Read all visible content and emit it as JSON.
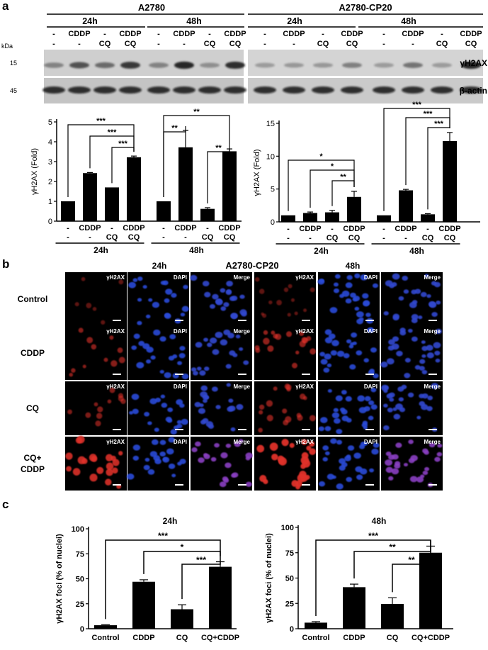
{
  "panel_labels": {
    "a": "a",
    "b": "b",
    "c": "c"
  },
  "western_blot": {
    "groups": [
      {
        "cell_line": "A2780",
        "time_points": [
          "24h",
          "48h"
        ]
      },
      {
        "cell_line": "A2780-CP20",
        "time_points": [
          "24h",
          "48h"
        ]
      }
    ],
    "lane_row1": [
      "-",
      "CDDP",
      "-",
      "CDDP"
    ],
    "lane_row2": [
      "-",
      "-",
      "CQ",
      "CQ"
    ],
    "kda_label": "kDa",
    "bands": [
      {
        "kda": "15",
        "name": "γH2AX"
      },
      {
        "kda": "45",
        "name": "β-actin"
      }
    ]
  },
  "bar_xaxis": {
    "row1": [
      "-",
      "CDDP",
      "-",
      "CDDP"
    ],
    "row2": [
      "-",
      "-",
      "CQ",
      "CQ"
    ],
    "groups": [
      "24h",
      "48h"
    ]
  },
  "panel_b": {
    "title": "A2780-CP20",
    "time_points": [
      "24h",
      "48h"
    ],
    "channels": [
      "γH2AX",
      "DAPI",
      "Merge"
    ],
    "rows": [
      "Control",
      "CDDP",
      "CQ",
      "CQ+\nCDDP"
    ]
  },
  "chart_data": [
    {
      "type": "bar",
      "panel": "a",
      "cell_line": "A2780",
      "ylabel": "γH2AX (Fold)",
      "ylim": [
        0,
        5
      ],
      "yticks": [
        0,
        1,
        2,
        3,
        4,
        5
      ],
      "groups": [
        "24h",
        "48h"
      ],
      "categories": [
        "-/-",
        "CDDP/-",
        "-/CQ",
        "CDDP/CQ"
      ],
      "series": [
        {
          "name": "24h",
          "values": [
            1.0,
            2.42,
            1.7,
            3.22
          ],
          "errors": [
            0,
            0.03,
            0,
            0.06
          ]
        },
        {
          "name": "48h",
          "values": [
            1.0,
            3.72,
            0.62,
            3.52
          ],
          "errors": [
            0,
            0.85,
            0.06,
            0.12
          ]
        }
      ],
      "significance": [
        {
          "label": "***",
          "group": 0,
          "from": 0,
          "to": 3
        },
        {
          "label": "***",
          "group": 0,
          "from": 1,
          "to": 3
        },
        {
          "label": "***",
          "group": 0,
          "from": 2,
          "to": 3
        },
        {
          "label": "**",
          "group": 1,
          "from": 0,
          "to": 1
        },
        {
          "label": "**",
          "group": 1,
          "from": 2,
          "to": 3
        },
        {
          "label": "**",
          "group": 1,
          "from": 0,
          "to": 3
        }
      ]
    },
    {
      "type": "bar",
      "panel": "a",
      "cell_line": "A2780-CP20",
      "ylabel": "γH2AX (Fold)",
      "ylim": [
        0,
        15
      ],
      "yticks": [
        0,
        5,
        10,
        15
      ],
      "groups": [
        "24h",
        "48h"
      ],
      "categories": [
        "-/-",
        "CDDP/-",
        "-/CQ",
        "CDDP/CQ"
      ],
      "series": [
        {
          "name": "24h",
          "values": [
            1.0,
            1.35,
            1.45,
            3.8
          ],
          "errors": [
            0,
            0.15,
            0.3,
            0.85
          ]
        },
        {
          "name": "48h",
          "values": [
            1.0,
            4.8,
            1.15,
            12.3
          ],
          "errors": [
            0,
            0.15,
            0.1,
            1.3
          ]
        }
      ],
      "significance": [
        {
          "label": "*",
          "group": 0,
          "from": 0,
          "to": 3
        },
        {
          "label": "*",
          "group": 0,
          "from": 1,
          "to": 3
        },
        {
          "label": "**",
          "group": 0,
          "from": 2,
          "to": 3
        },
        {
          "label": "***",
          "group": 1,
          "from": 0,
          "to": 3
        },
        {
          "label": "***",
          "group": 1,
          "from": 1,
          "to": 3
        },
        {
          "label": "***",
          "group": 1,
          "from": 2,
          "to": 3
        }
      ]
    },
    {
      "type": "bar",
      "panel": "c",
      "title": "24h",
      "ylabel": "γH2AX foci (% of nuclei)",
      "ylim": [
        0,
        100
      ],
      "yticks": [
        0,
        25,
        50,
        75,
        100
      ],
      "categories": [
        "Control",
        "CDDP",
        "CQ",
        "CQ+CDDP"
      ],
      "values": [
        3.5,
        47,
        19.5,
        62
      ],
      "errors": [
        0.5,
        2,
        4.5,
        5
      ],
      "significance": [
        {
          "label": "***",
          "from": 0,
          "to": 3
        },
        {
          "label": "*",
          "from": 1,
          "to": 3
        },
        {
          "label": "***",
          "from": 2,
          "to": 3
        }
      ]
    },
    {
      "type": "bar",
      "panel": "c",
      "title": "48h",
      "ylabel": "γH2AX foci (% of nuclei)",
      "ylim": [
        0,
        100
      ],
      "yticks": [
        0,
        25,
        50,
        75,
        100
      ],
      "categories": [
        "Control",
        "CDDP",
        "CQ",
        "CQ+CDDP"
      ],
      "values": [
        6,
        41,
        24.5,
        75
      ],
      "errors": [
        1,
        3,
        6,
        6.5
      ],
      "significance": [
        {
          "label": "***",
          "from": 0,
          "to": 3
        },
        {
          "label": "**",
          "from": 1,
          "to": 3
        },
        {
          "label": "**",
          "from": 2,
          "to": 3
        }
      ]
    }
  ]
}
